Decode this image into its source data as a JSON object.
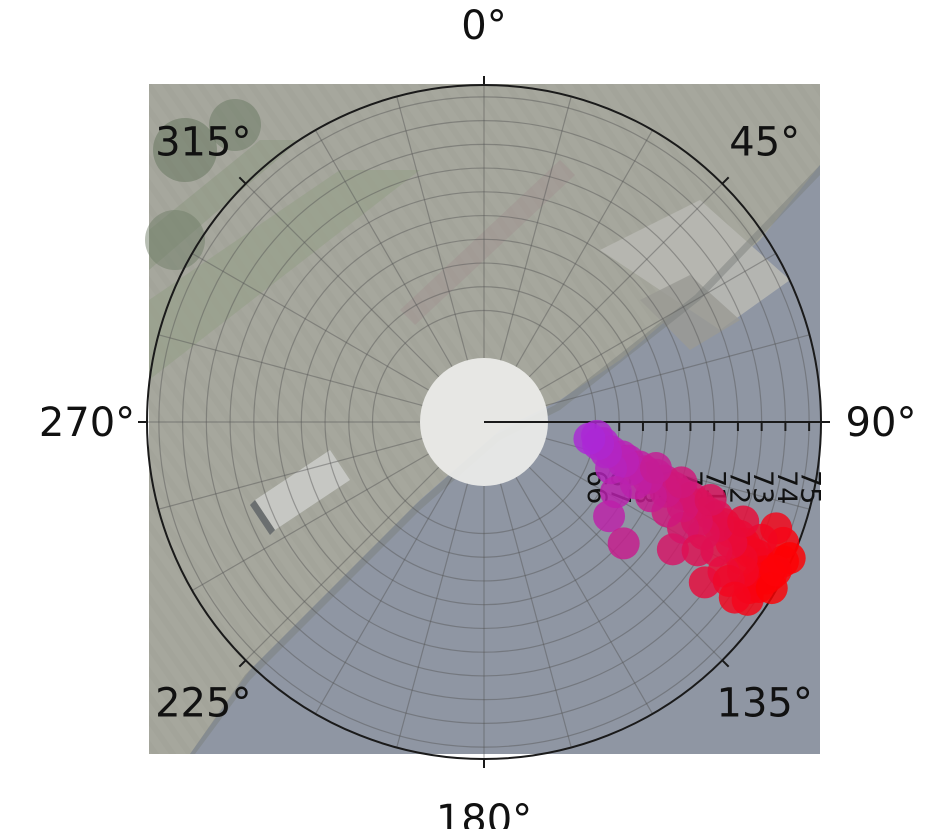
{
  "chart_data": {
    "type": "scatter",
    "subtype": "polar",
    "angular_axis": {
      "direction": "clockwise",
      "zero_position": "top",
      "tick_labels": [
        "0°",
        "45°",
        "90°",
        "135°",
        "180°",
        "225°",
        "270°",
        "315°"
      ],
      "tick_values": [
        0,
        45,
        90,
        135,
        180,
        225,
        270,
        315
      ]
    },
    "radial_axis": {
      "angle": 90,
      "range": [
        64,
        75.5
      ],
      "tick_labels": [
        "66",
        "67",
        "68",
        "69",
        "70",
        "71",
        "72",
        "73",
        "74",
        "75"
      ],
      "tick_values": [
        66,
        67,
        68,
        69,
        70,
        71,
        72,
        73,
        74,
        75
      ]
    },
    "grid": true,
    "background": "aerial-photo",
    "color_scale": {
      "low": "#9b30ff",
      "high": "#ff0000"
    },
    "points": [
      {
        "theta": 97,
        "r": 66.1
      },
      {
        "theta": 100,
        "r": 66.4
      },
      {
        "theta": 103,
        "r": 66.8
      },
      {
        "theta": 104,
        "r": 67.3
      },
      {
        "theta": 105,
        "r": 67.6
      },
      {
        "theta": 106,
        "r": 68.1
      },
      {
        "theta": 107,
        "r": 68.4
      },
      {
        "theta": 107,
        "r": 68.9
      },
      {
        "theta": 108,
        "r": 69.3
      },
      {
        "theta": 109,
        "r": 69.8
      },
      {
        "theta": 110,
        "r": 70.2
      },
      {
        "theta": 110,
        "r": 70.6
      },
      {
        "theta": 111,
        "r": 71.0
      },
      {
        "theta": 112,
        "r": 71.5
      },
      {
        "theta": 112,
        "r": 71.9
      },
      {
        "theta": 113,
        "r": 72.3
      },
      {
        "theta": 114,
        "r": 72.7
      },
      {
        "theta": 114,
        "r": 73.1
      },
      {
        "theta": 115,
        "r": 73.4
      },
      {
        "theta": 116,
        "r": 73.8
      },
      {
        "theta": 116,
        "r": 74.1
      },
      {
        "theta": 117,
        "r": 74.4
      },
      {
        "theta": 118,
        "r": 74.7
      },
      {
        "theta": 118,
        "r": 75.0
      },
      {
        "theta": 119,
        "r": 74.9
      },
      {
        "theta": 120,
        "r": 74.6
      },
      {
        "theta": 121,
        "r": 74.8
      },
      {
        "theta": 122,
        "r": 74.5
      },
      {
        "theta": 124,
        "r": 74.7
      },
      {
        "theta": 115,
        "r": 75.2
      },
      {
        "theta": 112,
        "r": 74.9
      },
      {
        "theta": 110,
        "r": 74.4
      },
      {
        "theta": 113,
        "r": 74.0
      },
      {
        "theta": 118,
        "r": 73.6
      },
      {
        "theta": 120,
        "r": 73.9
      },
      {
        "theta": 122,
        "r": 73.2
      },
      {
        "theta": 116,
        "r": 72.9
      },
      {
        "theta": 119,
        "r": 72.5
      },
      {
        "theta": 114,
        "r": 72.1
      },
      {
        "theta": 117,
        "r": 71.7
      },
      {
        "theta": 115,
        "r": 71.2
      },
      {
        "theta": 118,
        "r": 70.8
      },
      {
        "theta": 113,
        "r": 70.4
      },
      {
        "theta": 116,
        "r": 69.9
      },
      {
        "theta": 111,
        "r": 69.5
      },
      {
        "theta": 114,
        "r": 69.0
      },
      {
        "theta": 109,
        "r": 68.6
      },
      {
        "theta": 112,
        "r": 68.2
      },
      {
        "theta": 108,
        "r": 67.8
      },
      {
        "theta": 106,
        "r": 67.4
      },
      {
        "theta": 110,
        "r": 67.0
      },
      {
        "theta": 104,
        "r": 66.6
      },
      {
        "theta": 101,
        "r": 66.2
      },
      {
        "theta": 99,
        "r": 65.8
      },
      {
        "theta": 118,
        "r": 67.6
      },
      {
        "theta": 127,
        "r": 67.9
      },
      {
        "theta": 131,
        "r": 69.1
      },
      {
        "theta": 124,
        "r": 70.9
      },
      {
        "theta": 121,
        "r": 71.8
      },
      {
        "theta": 126,
        "r": 72.8
      },
      {
        "theta": 123,
        "r": 73.6
      },
      {
        "theta": 125,
        "r": 74.2
      },
      {
        "theta": 120,
        "r": 75.3
      },
      {
        "theta": 114,
        "r": 75.4
      },
      {
        "theta": 117,
        "r": 75.1
      },
      {
        "theta": 111,
        "r": 73.0
      },
      {
        "theta": 109,
        "r": 71.4
      },
      {
        "theta": 107,
        "r": 70.0
      },
      {
        "theta": 105,
        "r": 68.8
      }
    ]
  }
}
